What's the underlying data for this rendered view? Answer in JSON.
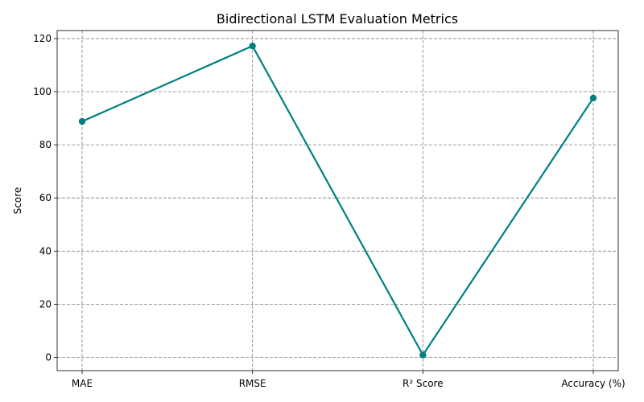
{
  "chart_data": {
    "type": "line",
    "title": "Bidirectional LSTM Evaluation Metrics",
    "xlabel": "",
    "ylabel": "Score",
    "categories": [
      "MAE",
      "RMSE",
      "R² Score",
      "Accuracy (%)"
    ],
    "series": [
      {
        "values": [
          88.8,
          117.2,
          0.9,
          97.6
        ],
        "color": "#008080",
        "marker": "circle"
      }
    ],
    "ylim": [
      -5,
      123
    ],
    "yticks": [
      0,
      20,
      40,
      60,
      80,
      100,
      120
    ],
    "grid": true
  }
}
